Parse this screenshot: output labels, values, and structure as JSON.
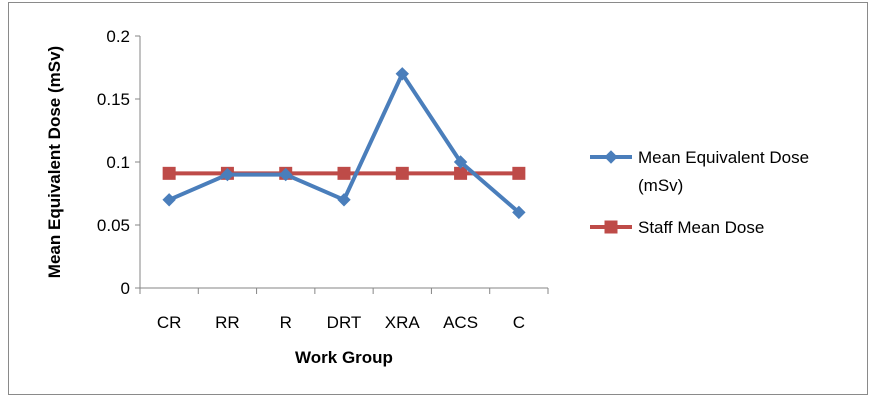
{
  "chart_data": {
    "type": "line",
    "categories": [
      "CR",
      "RR",
      "R",
      "DRT",
      "XRA",
      "ACS",
      "C"
    ],
    "xlabel": "Work Group",
    "ylabel": "Mean Equivalent Dose (mSv)",
    "ylim": [
      0,
      0.2
    ],
    "yticks": [
      "0",
      "0.05",
      "0.1",
      "0.15",
      "0.2"
    ],
    "grid": false,
    "legend_position": "right",
    "series": [
      {
        "name": "Mean Equivalent Dose (mSv)",
        "legend_lines": [
          "Mean Equivalent Dose",
          "(mSv)"
        ],
        "values": [
          0.07,
          0.09,
          0.09,
          0.07,
          0.17,
          0.1,
          0.06
        ],
        "color": "#4a7ebb",
        "marker": "diamond"
      },
      {
        "name": "Staff Mean Dose",
        "legend_lines": [
          "Staff Mean Dose"
        ],
        "values": [
          0.091,
          0.091,
          0.091,
          0.091,
          0.091,
          0.091,
          0.091
        ],
        "color": "#be4b48",
        "marker": "square"
      }
    ]
  }
}
